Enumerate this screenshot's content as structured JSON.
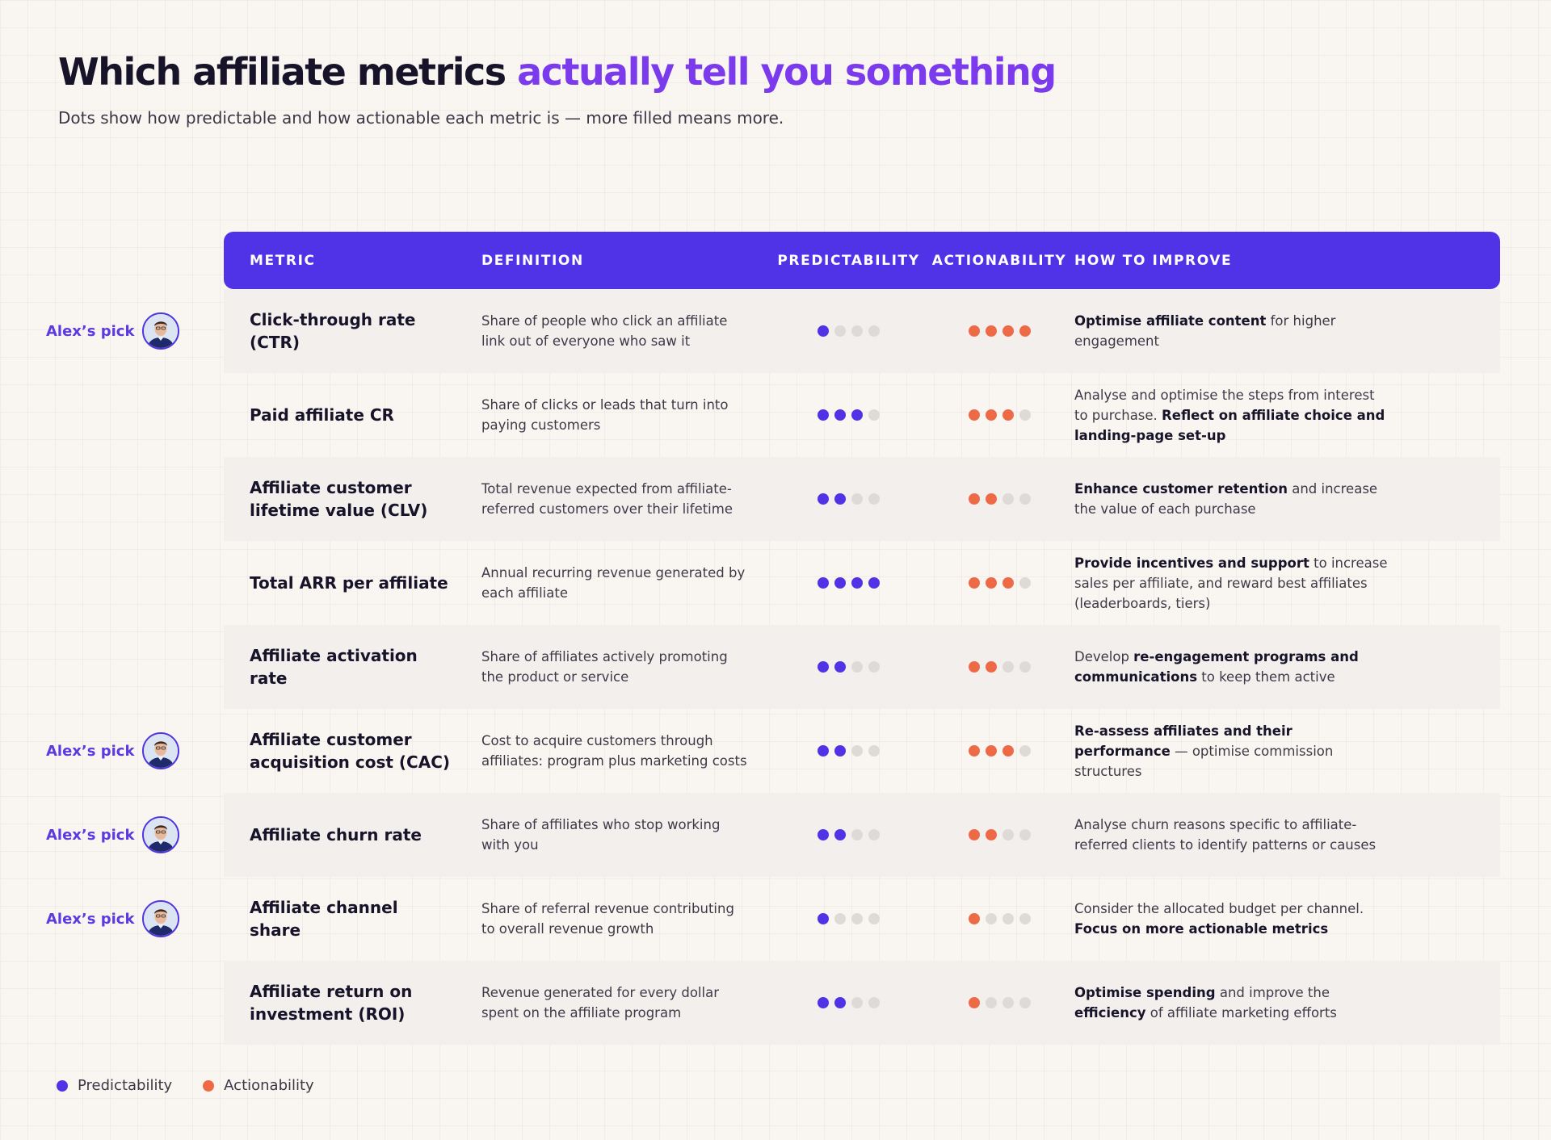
{
  "header": {
    "title_main": "Which affiliate metrics ",
    "title_accent": "actually tell you something",
    "subtitle": "Dots show how predictable and how actionable each metric is — more filled means more."
  },
  "columns": {
    "metric": "METRIC",
    "definition": "DEFINITION",
    "predictability": "PREDICTABILITY",
    "actionability": "ACTIONABILITY",
    "how": "HOW TO IMPROVE"
  },
  "pick_label": "Alex’s pick",
  "max_dots": 4,
  "colors": {
    "predictability": "#5033e6",
    "actionability": "#ee6a47",
    "empty_dot": "#dedad7",
    "header_bg": "#5033e6",
    "title_accent": "#7c3aed"
  },
  "rows": [
    {
      "metric": "Click-through rate (CTR)",
      "definition": "Share of people who click an affiliate link out of everyone who saw it",
      "predictability": 1,
      "actionability": 4,
      "pick": true,
      "how": [
        {
          "t": "Optimise affiliate content",
          "b": true
        },
        {
          "t": " for higher engagement",
          "b": false
        }
      ]
    },
    {
      "metric": "Paid affiliate CR",
      "definition": "Share of clicks or leads that turn into paying customers",
      "predictability": 3,
      "actionability": 3,
      "pick": false,
      "how": [
        {
          "t": "Analyse and optimise the steps from interest to purchase. ",
          "b": false
        },
        {
          "t": "Reflect on affiliate choice and landing-page set-up",
          "b": true
        }
      ]
    },
    {
      "metric": "Affiliate customer lifetime value (CLV)",
      "definition": "Total revenue expected from affiliate-referred customers over their lifetime",
      "predictability": 2,
      "actionability": 2,
      "pick": false,
      "how": [
        {
          "t": "Enhance customer retention",
          "b": true
        },
        {
          "t": " and increase the value of each purchase",
          "b": false
        }
      ]
    },
    {
      "metric": "Total ARR per affiliate",
      "definition": "Annual recurring revenue generated by each affiliate",
      "predictability": 4,
      "actionability": 3,
      "pick": false,
      "how": [
        {
          "t": "Provide incentives and support",
          "b": true
        },
        {
          "t": " to increase sales per affiliate, and reward best affiliates (leaderboards, tiers)",
          "b": false
        }
      ]
    },
    {
      "metric": "Affiliate activation rate",
      "definition": "Share of affiliates actively promoting the product or service",
      "predictability": 2,
      "actionability": 2,
      "pick": false,
      "how": [
        {
          "t": "Develop ",
          "b": false
        },
        {
          "t": "re-engagement programs and communications",
          "b": true
        },
        {
          "t": " to keep them active",
          "b": false
        }
      ]
    },
    {
      "metric": "Affiliate customer acquisition cost (CAC)",
      "definition": "Cost to acquire customers through affiliates: program plus marketing costs",
      "predictability": 2,
      "actionability": 3,
      "pick": true,
      "how": [
        {
          "t": "Re-assess affiliates and their performance",
          "b": true
        },
        {
          "t": " — optimise commission structures",
          "b": false
        }
      ]
    },
    {
      "metric": "Affiliate churn rate",
      "definition": "Share of affiliates who stop working with you",
      "predictability": 2,
      "actionability": 2,
      "pick": true,
      "how": [
        {
          "t": "Analyse churn reasons specific to affiliate-referred clients to identify patterns or causes",
          "b": false
        }
      ]
    },
    {
      "metric": "Affiliate channel share",
      "definition": "Share of referral revenue contributing to overall revenue growth",
      "predictability": 1,
      "actionability": 1,
      "pick": true,
      "how": [
        {
          "t": "Consider the allocated budget per channel. ",
          "b": false
        },
        {
          "t": "Focus on more actionable metrics",
          "b": true
        }
      ]
    },
    {
      "metric": "Affiliate return on investment (ROI)",
      "definition": "Revenue generated for every dollar spent on the affiliate program",
      "predictability": 2,
      "actionability": 1,
      "pick": false,
      "how": [
        {
          "t": "Optimise spending",
          "b": true
        },
        {
          "t": " and improve the ",
          "b": false
        },
        {
          "t": "efficiency",
          "b": true
        },
        {
          "t": " of affiliate marketing efforts",
          "b": false
        }
      ]
    }
  ],
  "legend": {
    "predictability": "Predictability",
    "actionability": "Actionability"
  }
}
